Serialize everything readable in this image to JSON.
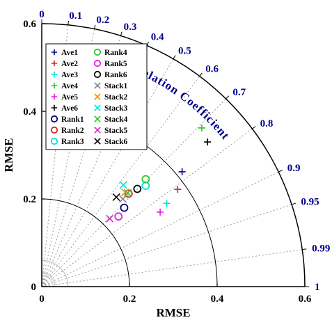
{
  "chart_data": {
    "type": "scatter",
    "title": "",
    "xlabel": "RMSE",
    "ylabel": "RMSE",
    "correlation_label": "Correlation Coefficient",
    "xlim": [
      0,
      0.6
    ],
    "ylim": [
      0,
      0.6
    ],
    "grid": true,
    "legend_position": "top-left",
    "x_ticks": [
      {
        "value": 0,
        "label": "0"
      },
      {
        "value": 0.2,
        "label": "0.2"
      },
      {
        "value": 0.4,
        "label": "0.4"
      },
      {
        "value": 0.6,
        "label": "0.6"
      }
    ],
    "y_ticks": [
      {
        "value": 0,
        "label": "0"
      },
      {
        "value": 0.2,
        "label": "0.2"
      },
      {
        "value": 0.4,
        "label": "0.4"
      },
      {
        "value": 0.6,
        "label": "0.6"
      }
    ],
    "rmse_arcs": [
      0.2,
      0.4
    ],
    "correlation_ticks": [
      {
        "value": 0,
        "label": "0"
      },
      {
        "value": 0.1,
        "label": "0.1"
      },
      {
        "value": 0.2,
        "label": "0.2"
      },
      {
        "value": 0.3,
        "label": "0.3"
      },
      {
        "value": 0.4,
        "label": "0.4"
      },
      {
        "value": 0.5,
        "label": "0.5"
      },
      {
        "value": 0.6,
        "label": "0.6"
      },
      {
        "value": 0.7,
        "label": "0.7"
      },
      {
        "value": 0.8,
        "label": "0.8"
      },
      {
        "value": 0.9,
        "label": "0.9"
      },
      {
        "value": 0.95,
        "label": "0.95"
      },
      {
        "value": 0.99,
        "label": "0.99"
      },
      {
        "value": 1,
        "label": "1"
      }
    ],
    "series": [
      {
        "name": "Ave1",
        "marker": "plus",
        "color": "#000080",
        "x": 0.32,
        "y": 0.262
      },
      {
        "name": "Ave2",
        "marker": "plus",
        "color": "#d62728",
        "x": 0.31,
        "y": 0.222
      },
      {
        "name": "Ave3",
        "marker": "plus",
        "color": "#00e0e0",
        "x": 0.285,
        "y": 0.19
      },
      {
        "name": "Ave4",
        "marker": "plus",
        "color": "#22cc22",
        "x": 0.365,
        "y": 0.362
      },
      {
        "name": "Ave5",
        "marker": "plus",
        "color": "#e020e0",
        "x": 0.27,
        "y": 0.17
      },
      {
        "name": "Ave6",
        "marker": "plus",
        "color": "#000000",
        "x": 0.378,
        "y": 0.33
      },
      {
        "name": "Rank1",
        "marker": "circle",
        "color": "#000080",
        "x": 0.188,
        "y": 0.18
      },
      {
        "name": "Rank2",
        "marker": "circle",
        "color": "#d62728",
        "x": 0.198,
        "y": 0.212
      },
      {
        "name": "Rank3",
        "marker": "circle",
        "color": "#00e0e0",
        "x": 0.237,
        "y": 0.23
      },
      {
        "name": "Rank4",
        "marker": "circle",
        "color": "#22cc22",
        "x": 0.237,
        "y": 0.245
      },
      {
        "name": "Rank5",
        "marker": "circle",
        "color": "#e020e0",
        "x": 0.175,
        "y": 0.16
      },
      {
        "name": "Rank6",
        "marker": "circle",
        "color": "#000000",
        "x": 0.218,
        "y": 0.223
      },
      {
        "name": "Stack1",
        "marker": "cross",
        "color": "#888888",
        "x": 0.185,
        "y": 0.2
      },
      {
        "name": "Stack2",
        "marker": "cross",
        "color": "#ff8c00",
        "x": 0.19,
        "y": 0.215
      },
      {
        "name": "Stack3",
        "marker": "cross",
        "color": "#00e0e0",
        "x": 0.186,
        "y": 0.232
      },
      {
        "name": "Stack4",
        "marker": "cross",
        "color": "#22cc22",
        "x": 0.196,
        "y": 0.214
      },
      {
        "name": "Stack5",
        "marker": "cross",
        "color": "#e020e0",
        "x": 0.155,
        "y": 0.155
      },
      {
        "name": "Stack6",
        "marker": "cross",
        "color": "#000000",
        "x": 0.17,
        "y": 0.204
      }
    ]
  }
}
